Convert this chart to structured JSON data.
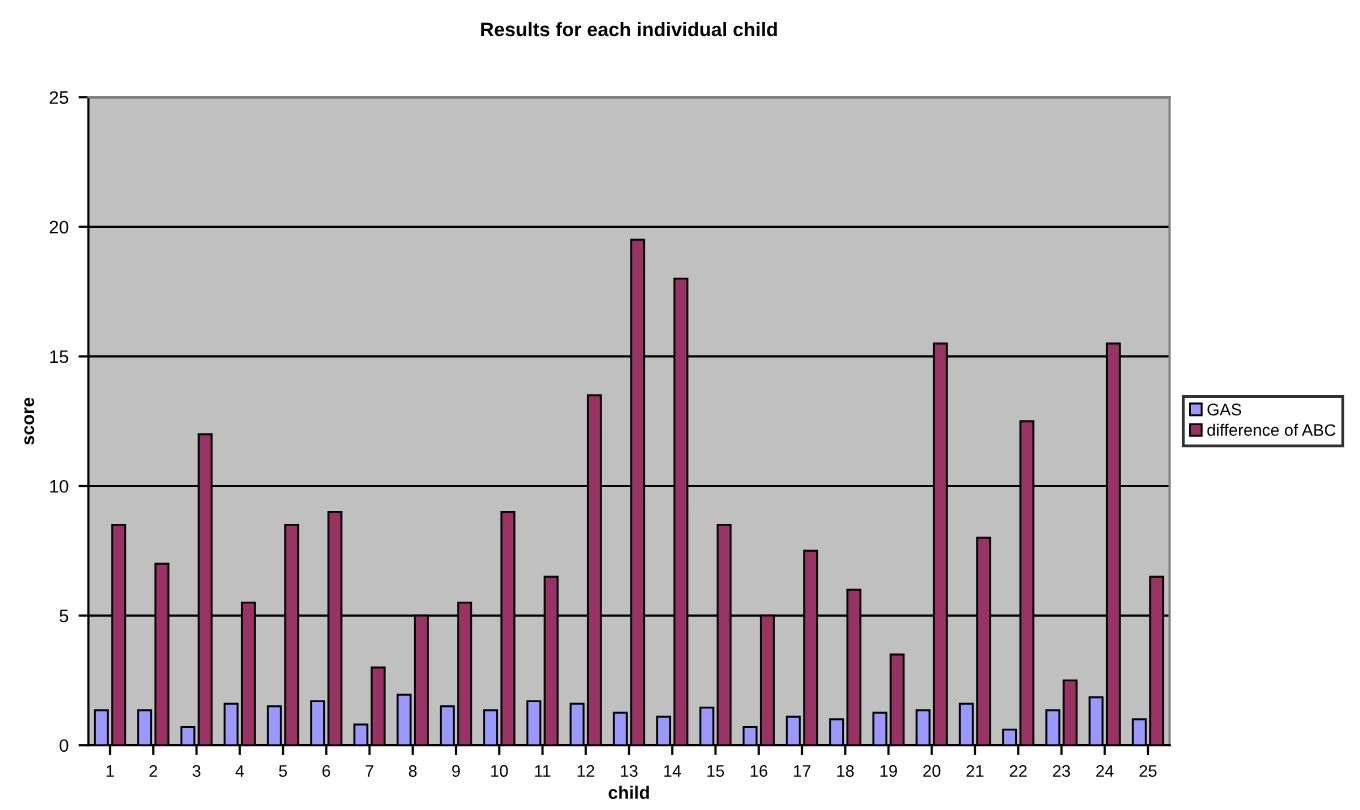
{
  "chart_data": {
    "type": "bar",
    "title": "Results for each individual child",
    "xlabel": "child",
    "ylabel": "score",
    "categories": [
      "1",
      "2",
      "3",
      "4",
      "5",
      "6",
      "7",
      "8",
      "9",
      "10",
      "11",
      "12",
      "13",
      "14",
      "15",
      "16",
      "17",
      "18",
      "19",
      "20",
      "21",
      "22",
      "23",
      "24",
      "25"
    ],
    "series": [
      {
        "name": "GAS",
        "color": "#9999ff",
        "values": [
          1.35,
          1.35,
          0.7,
          1.6,
          1.5,
          1.7,
          0.8,
          1.95,
          1.5,
          1.35,
          1.7,
          1.6,
          1.25,
          1.1,
          1.45,
          0.7,
          1.1,
          1.0,
          1.25,
          1.35,
          1.6,
          0.6,
          1.35,
          1.85,
          1.0
        ]
      },
      {
        "name": "difference of ABC",
        "color": "#993366",
        "values": [
          8.5,
          7,
          12,
          5.5,
          8.5,
          9,
          3,
          5,
          5.5,
          9,
          6.5,
          13.5,
          19.5,
          18,
          8.5,
          5,
          7.5,
          6,
          3.5,
          15.5,
          8,
          12.5,
          2.5,
          15.5,
          6.5
        ]
      }
    ],
    "ylim": [
      0,
      25
    ],
    "yticks": [
      0,
      5,
      10,
      15,
      20,
      25
    ],
    "grid": "y",
    "legend": "right"
  }
}
